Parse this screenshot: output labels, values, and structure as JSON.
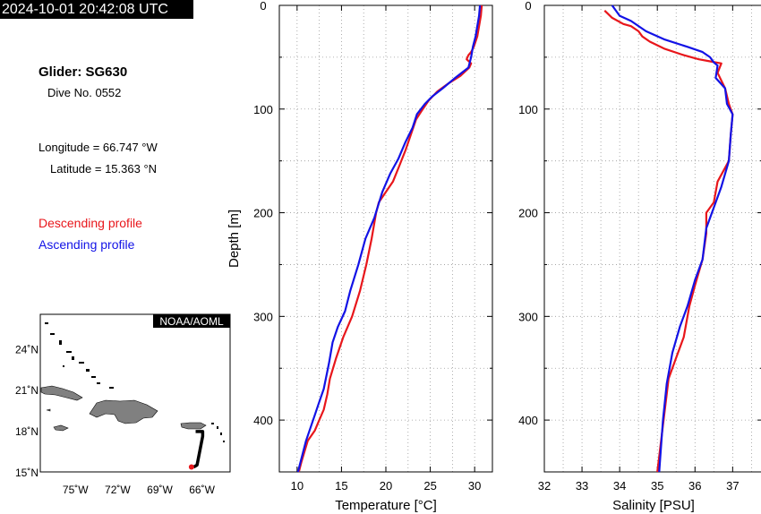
{
  "header": {
    "timestamp": "2024-10-01 20:42:08 UTC"
  },
  "info": {
    "glider": "Glider: SG630",
    "dive": "Dive No. 0552",
    "longitude": "Longitude = 66.747 °W",
    "latitude": "Latitude = 15.363 °N"
  },
  "legend": {
    "descending": "Descending profile",
    "ascending": "Ascending profile",
    "descending_color": "#e8161b",
    "ascending_color": "#1212e6"
  },
  "map": {
    "badge": "NOAA/AOML",
    "lat_labels": [
      "24˚N",
      "21˚N",
      "18˚N",
      "15˚N"
    ],
    "lat_values": [
      24,
      21,
      18,
      15
    ],
    "lon_labels": [
      "75˚W",
      "72˚W",
      "69˚W",
      "66˚W"
    ],
    "lon_values": [
      -75,
      -72,
      -69,
      -66
    ],
    "lon_range": [
      -77.5,
      -64
    ],
    "lat_range": [
      15,
      26.5
    ],
    "track": [
      [
        -66.45,
        17.95
      ],
      [
        -65.95,
        17.95
      ],
      [
        -65.95,
        17.6
      ],
      [
        -66.35,
        15.5
      ],
      [
        -66.6,
        15.35
      ]
    ],
    "current_position": [
      -66.747,
      15.363
    ],
    "land_color": "#808080",
    "track_color": "#000000",
    "marker_color": "#e8161b"
  },
  "chart_data": [
    {
      "type": "line",
      "xlabel": "Temperature [°C]",
      "ylabel": "Depth [m]",
      "xlim": [
        8,
        32
      ],
      "ylim": [
        450,
        0
      ],
      "xticks": [
        10,
        15,
        20,
        25,
        30
      ],
      "yticks": [
        0,
        100,
        200,
        300,
        400
      ],
      "grid": true,
      "series": [
        {
          "name": "Descending profile",
          "color": "#e8161b",
          "x": [
            30.8,
            30.7,
            30.5,
            30.3,
            29.9,
            29.6,
            29.3,
            29.1,
            29.6,
            29.4,
            28.4,
            27.1,
            25.8,
            24.8,
            24.0,
            23.4,
            22.8,
            22.2,
            21.5,
            20.8,
            20.0,
            19.2,
            18.9,
            18.4,
            17.8,
            17.1,
            16.2,
            15.2,
            14.4,
            13.7,
            13.4,
            13.0,
            12.5,
            12.0,
            11.2,
            10.5,
            10.2
          ],
          "y": [
            0,
            10,
            20,
            30,
            40,
            45,
            48,
            52,
            56,
            60,
            68,
            75,
            83,
            92,
            102,
            110,
            125,
            140,
            155,
            170,
            180,
            190,
            200,
            225,
            250,
            275,
            300,
            320,
            340,
            360,
            375,
            390,
            400,
            410,
            420,
            440,
            450
          ]
        },
        {
          "name": "Ascending profile",
          "color": "#1212e6",
          "x": [
            30.6,
            30.5,
            30.3,
            30.1,
            29.8,
            29.6,
            29.3,
            27.8,
            26.4,
            25.2,
            24.4,
            23.5,
            23.0,
            22.2,
            21.4,
            20.5,
            19.6,
            18.7,
            17.7,
            16.9,
            16.0,
            15.4,
            14.6,
            14.0,
            13.6,
            13.0,
            12.4,
            12.0,
            11.0,
            10.1
          ],
          "y": [
            0,
            10,
            20,
            30,
            40,
            50,
            60,
            70,
            80,
            88,
            95,
            105,
            118,
            132,
            148,
            162,
            180,
            205,
            225,
            250,
            275,
            295,
            310,
            325,
            345,
            370,
            385,
            395,
            420,
            450
          ]
        }
      ]
    },
    {
      "type": "line",
      "xlabel": "Salinity [PSU]",
      "ylabel": "",
      "xlim": [
        32,
        37.8
      ],
      "ylim": [
        450,
        0
      ],
      "xticks": [
        32,
        33,
        34,
        35,
        36,
        37
      ],
      "yticks": [
        0,
        100,
        200,
        300,
        400
      ],
      "grid": true,
      "series": [
        {
          "name": "Descending profile",
          "color": "#e8161b",
          "x": [
            33.6,
            33.8,
            34.1,
            34.3,
            34.5,
            34.6,
            34.8,
            35.2,
            35.7,
            36.1,
            36.4,
            36.7,
            36.6,
            36.8,
            36.9,
            37.0,
            36.95,
            36.9,
            36.6,
            36.5,
            36.3,
            36.3,
            36.2,
            36.0,
            35.85,
            35.7,
            35.5,
            35.3,
            35.2,
            35.1,
            35.0
          ],
          "y": [
            5,
            12,
            18,
            20,
            25,
            30,
            35,
            42,
            48,
            52,
            54,
            56,
            65,
            80,
            95,
            105,
            125,
            150,
            170,
            190,
            200,
            220,
            245,
            270,
            290,
            320,
            340,
            360,
            390,
            420,
            450
          ]
        },
        {
          "name": "Ascending profile",
          "color": "#1212e6",
          "x": [
            33.8,
            34.0,
            34.3,
            34.7,
            35.2,
            35.8,
            36.2,
            36.4,
            36.5,
            36.6,
            36.55,
            36.8,
            36.85,
            37.0,
            36.95,
            36.9,
            36.7,
            36.5,
            36.3,
            36.2,
            36.0,
            35.8,
            35.6,
            35.4,
            35.25,
            35.15,
            35.05
          ],
          "y": [
            0,
            10,
            15,
            25,
            33,
            40,
            45,
            50,
            55,
            58,
            70,
            80,
            95,
            105,
            125,
            150,
            175,
            195,
            215,
            245,
            265,
            290,
            310,
            335,
            365,
            400,
            450
          ]
        }
      ]
    }
  ]
}
